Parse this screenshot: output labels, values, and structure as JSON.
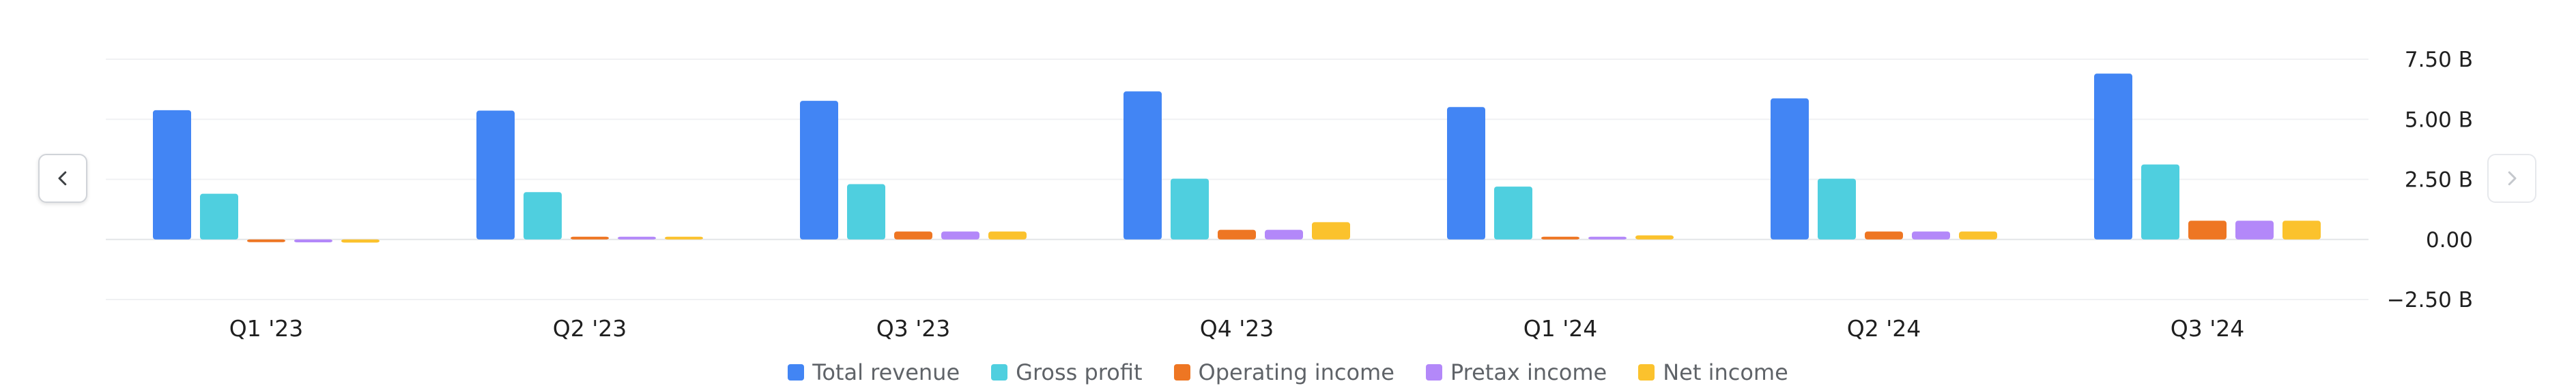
{
  "chart_data": {
    "type": "bar",
    "categories": [
      "Q1 '23",
      "Q2 '23",
      "Q3 '23",
      "Q4 '23",
      "Q1 '24",
      "Q2 '24",
      "Q3 '24"
    ],
    "series": [
      {
        "name": "Total revenue",
        "color": "#4285f4",
        "values": [
          5.38,
          5.36,
          5.77,
          6.16,
          5.51,
          5.87,
          6.9
        ]
      },
      {
        "name": "Gross profit",
        "color": "#4fcfdf",
        "values": [
          1.9,
          1.97,
          2.3,
          2.53,
          2.2,
          2.53,
          3.12
        ]
      },
      {
        "name": "Operating income",
        "color": "#ee7623",
        "values": [
          -0.05,
          0.08,
          0.33,
          0.4,
          0.1,
          0.33,
          0.78
        ]
      },
      {
        "name": "Pretax income",
        "color": "#b388f9",
        "values": [
          -0.12,
          0.04,
          0.33,
          0.4,
          0.05,
          0.33,
          0.78
        ]
      },
      {
        "name": "Net income",
        "color": "#fbc22d",
        "values": [
          -0.13,
          0.08,
          0.33,
          0.72,
          0.17,
          0.33,
          0.78
        ]
      }
    ],
    "y_ticks": [
      {
        "value": 7.5,
        "label": "7.50 B"
      },
      {
        "value": 5.0,
        "label": "5.00 B"
      },
      {
        "value": 2.5,
        "label": "2.50 B"
      },
      {
        "value": 0.0,
        "label": "0.00"
      },
      {
        "value": -2.5,
        "label": "−2.50 B"
      }
    ],
    "ylim": [
      -2.5,
      7.5
    ],
    "y_axis_side": "right",
    "grid": true,
    "legend_position": "bottom-center"
  },
  "navigation": {
    "prev_icon": "chevron-left-icon",
    "next_icon": "chevron-right-icon"
  }
}
